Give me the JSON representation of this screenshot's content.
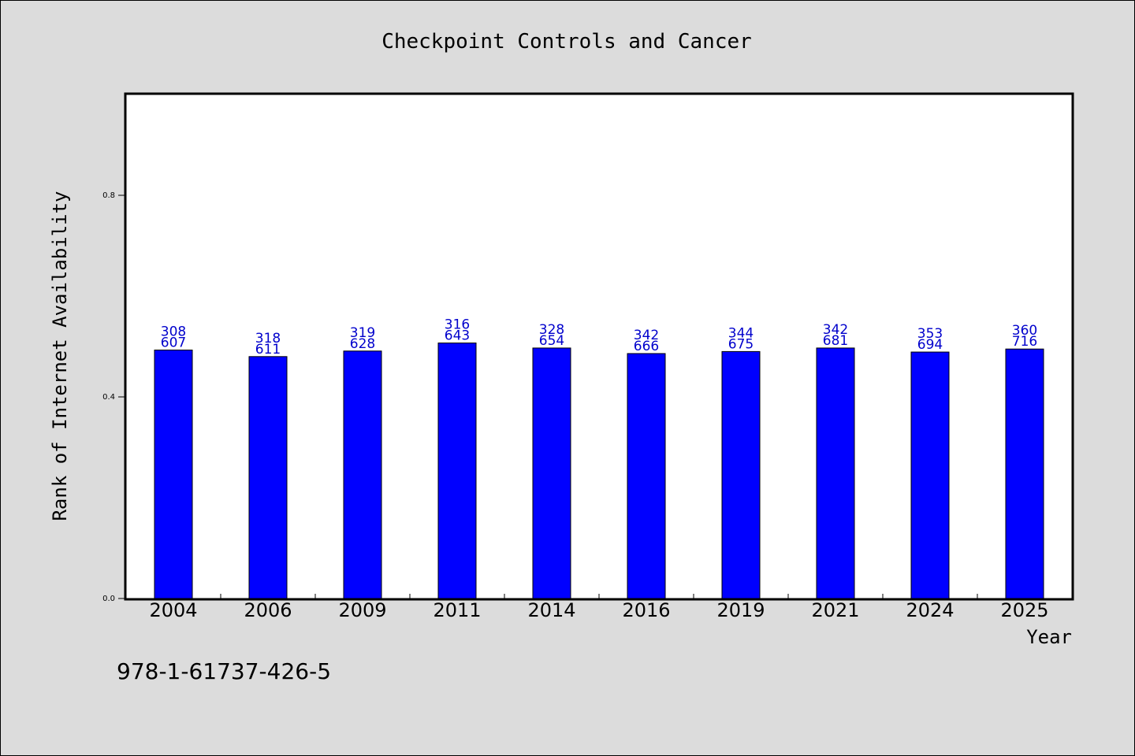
{
  "chart_data": {
    "type": "bar",
    "title": "Checkpoint Controls and Cancer",
    "xlabel": "Year",
    "ylabel": "Rank of Internet Availability",
    "categories": [
      "2004",
      "2006",
      "2009",
      "2011",
      "2014",
      "2016",
      "2019",
      "2021",
      "2024",
      "2025"
    ],
    "values": [
      0.493,
      0.48,
      0.491,
      0.507,
      0.497,
      0.486,
      0.49,
      0.497,
      0.489,
      0.495
    ],
    "data_labels": [
      [
        "308",
        "607"
      ],
      [
        "318",
        "611"
      ],
      [
        "319",
        "628"
      ],
      [
        "316",
        "643"
      ],
      [
        "328",
        "654"
      ],
      [
        "342",
        "666"
      ],
      [
        "344",
        "675"
      ],
      [
        "342",
        "681"
      ],
      [
        "353",
        "694"
      ],
      [
        "360",
        "716"
      ]
    ],
    "yticks": [
      "0.0",
      "0.4",
      "0.8"
    ],
    "ylim": [
      0,
      1.0
    ],
    "grid": false,
    "legend": "none",
    "colors": {
      "bar_fill": "#0000ff",
      "bar_stroke": "#000000",
      "label": "#0000cc",
      "plot_bg": "#ffffff",
      "page_bg": "#dcdcdc"
    }
  },
  "footer": {
    "isbn": "978-1-61737-426-5"
  }
}
